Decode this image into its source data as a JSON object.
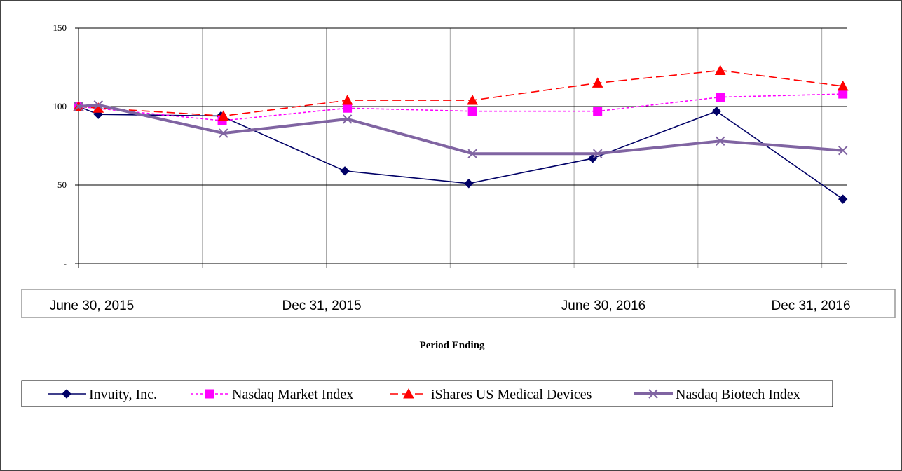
{
  "chart_data": {
    "type": "line",
    "title": "",
    "xlabel": "Period Ending",
    "ylabel": "",
    "ylim": [
      0,
      150
    ],
    "yticks": [
      {
        "value": 0,
        "label": "-"
      },
      {
        "value": 50,
        "label": "50"
      },
      {
        "value": 100,
        "label": "100"
      },
      {
        "value": 150,
        "label": "150"
      }
    ],
    "category_labels": [
      "June 30, 2015",
      "Dec 31, 2015",
      "June 30, 2016",
      "Dec 31, 2016"
    ],
    "grid": {
      "horizontal": true,
      "vertical": true
    },
    "legend": "bottom",
    "series": [
      {
        "name": "Invuity, Inc.",
        "color": "#000066",
        "marker": "diamond",
        "dash": "solid",
        "x": [
          0,
          0.16,
          1.15,
          2.15,
          3.15,
          4.15,
          5.15,
          6.17
        ],
        "y": [
          100,
          95,
          94,
          59,
          51,
          67,
          97,
          41
        ]
      },
      {
        "name": "Nasdaq Market Index",
        "color": "#ff00ff",
        "marker": "square",
        "dash": "dotted",
        "x": [
          0,
          1.16,
          2.17,
          3.18,
          4.19,
          5.18,
          6.17
        ],
        "y": [
          100,
          91,
          99,
          97,
          97,
          106,
          108
        ]
      },
      {
        "name": "iShares US Medical Devices",
        "color": "#ff0000",
        "marker": "triangle",
        "dash": "dashed",
        "x": [
          0,
          0.16,
          1.17,
          2.17,
          3.18,
          4.19,
          5.18,
          6.17
        ],
        "y": [
          100,
          99,
          94,
          104,
          104,
          115,
          123,
          113
        ]
      },
      {
        "name": "Nasdaq Biotech Index",
        "color": "#8064a2",
        "marker": "x",
        "dash": "solid",
        "x": [
          0,
          0.16,
          1.17,
          2.17,
          3.18,
          4.19,
          5.18,
          6.17
        ],
        "y": [
          100,
          101,
          83,
          92,
          70,
          70,
          78,
          72
        ]
      }
    ]
  }
}
